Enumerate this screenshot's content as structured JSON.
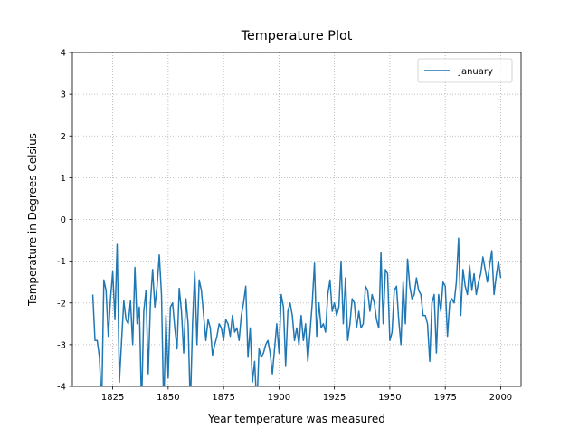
{
  "chart_data": {
    "type": "line",
    "title": "Temperature Plot",
    "x_label": "Year temperature was measured",
    "y_label": "Temperature in Degrees Celsius",
    "x": [
      1816,
      1817,
      1818,
      1819,
      1820,
      1821,
      1822,
      1823,
      1824,
      1825,
      1826,
      1827,
      1828,
      1829,
      1830,
      1831,
      1832,
      1833,
      1834,
      1835,
      1836,
      1837,
      1838,
      1839,
      1840,
      1841,
      1842,
      1843,
      1844,
      1845,
      1846,
      1847,
      1848,
      1849,
      1850,
      1851,
      1852,
      1853,
      1854,
      1855,
      1856,
      1857,
      1858,
      1859,
      1860,
      1861,
      1862,
      1863,
      1864,
      1865,
      1866,
      1867,
      1868,
      1869,
      1870,
      1871,
      1872,
      1873,
      1874,
      1875,
      1876,
      1877,
      1878,
      1879,
      1880,
      1881,
      1882,
      1883,
      1884,
      1885,
      1886,
      1887,
      1888,
      1889,
      1890,
      1891,
      1892,
      1893,
      1894,
      1895,
      1896,
      1897,
      1898,
      1899,
      1900,
      1901,
      1902,
      1903,
      1904,
      1905,
      1906,
      1907,
      1908,
      1909,
      1910,
      1911,
      1912,
      1913,
      1914,
      1915,
      1916,
      1917,
      1918,
      1919,
      1920,
      1921,
      1922,
      1923,
      1924,
      1925,
      1926,
      1927,
      1928,
      1929,
      1930,
      1931,
      1932,
      1933,
      1934,
      1935,
      1936,
      1937,
      1938,
      1939,
      1940,
      1941,
      1942,
      1943,
      1944,
      1945,
      1946,
      1947,
      1948,
      1949,
      1950,
      1951,
      1952,
      1953,
      1954,
      1955,
      1956,
      1957,
      1958,
      1959,
      1960,
      1961,
      1962,
      1963,
      1964,
      1965,
      1966,
      1967,
      1968,
      1969,
      1970,
      1971,
      1972,
      1973,
      1974,
      1975,
      1976,
      1977,
      1978,
      1979,
      1980,
      1981,
      1982,
      1983,
      1984,
      1985,
      1986,
      1987,
      1988,
      1989,
      1990,
      1991,
      1992,
      1993,
      1994,
      1995,
      1996,
      1997,
      1998,
      1999,
      2000
    ],
    "series": [
      {
        "name": "January",
        "color": "#1f77b4",
        "values": [
          -1.8,
          -2.9,
          -2.9,
          -3.3,
          -4.5,
          -1.45,
          -1.7,
          -2.8,
          -1.9,
          -1.25,
          -2.4,
          -0.6,
          -3.9,
          -2.9,
          -1.95,
          -2.4,
          -2.5,
          -1.95,
          -3.0,
          -1.15,
          -2.5,
          -2.1,
          -4.5,
          -2.2,
          -1.7,
          -3.7,
          -2.0,
          -1.2,
          -2.1,
          -1.6,
          -0.85,
          -1.8,
          -4.6,
          -2.3,
          -3.8,
          -2.1,
          -2.0,
          -2.6,
          -3.1,
          -1.65,
          -2.2,
          -3.2,
          -1.9,
          -2.5,
          -4.5,
          -2.5,
          -1.25,
          -3.0,
          -1.45,
          -1.7,
          -2.3,
          -2.9,
          -2.4,
          -2.6,
          -3.25,
          -3.0,
          -2.8,
          -2.5,
          -2.6,
          -2.9,
          -2.4,
          -2.5,
          -2.8,
          -2.3,
          -2.7,
          -2.6,
          -2.9,
          -2.3,
          -2.0,
          -1.6,
          -3.3,
          -2.6,
          -3.9,
          -3.4,
          -4.5,
          -3.1,
          -3.3,
          -3.2,
          -3.0,
          -2.9,
          -3.2,
          -3.7,
          -3.1,
          -2.5,
          -3.2,
          -1.8,
          -2.1,
          -3.5,
          -2.2,
          -2.0,
          -2.3,
          -2.9,
          -2.6,
          -3.0,
          -2.3,
          -2.9,
          -2.5,
          -3.4,
          -2.7,
          -2.0,
          -1.05,
          -2.8,
          -2.0,
          -2.6,
          -2.5,
          -2.7,
          -1.8,
          -1.45,
          -2.2,
          -2.0,
          -2.3,
          -2.1,
          -1.0,
          -2.5,
          -1.4,
          -2.9,
          -2.5,
          -1.9,
          -2.0,
          -2.6,
          -2.2,
          -2.6,
          -2.5,
          -1.6,
          -1.7,
          -2.2,
          -1.8,
          -2.0,
          -2.4,
          -2.6,
          -0.8,
          -2.5,
          -1.2,
          -1.3,
          -2.9,
          -2.7,
          -1.7,
          -1.6,
          -2.4,
          -3.0,
          -1.5,
          -2.5,
          -0.95,
          -1.6,
          -1.9,
          -1.8,
          -1.4,
          -1.7,
          -1.8,
          -2.3,
          -2.3,
          -2.5,
          -3.4,
          -2.0,
          -1.8,
          -3.2,
          -1.8,
          -2.2,
          -1.5,
          -1.6,
          -2.8,
          -2.0,
          -1.9,
          -2.0,
          -1.5,
          -0.45,
          -2.3,
          -1.2,
          -1.6,
          -1.8,
          -1.1,
          -1.7,
          -1.3,
          -1.8,
          -1.5,
          -1.3,
          -0.9,
          -1.2,
          -1.5,
          -1.1,
          -0.75,
          -1.8,
          -1.35,
          -1.0,
          -1.4
        ]
      }
    ],
    "xlim": [
      1806.8,
      2009.2
    ],
    "ylim": [
      -4,
      4
    ],
    "xticks": [
      1825,
      1850,
      1875,
      1900,
      1925,
      1950,
      1975,
      2000
    ],
    "yticks": [
      -4,
      -3,
      -2,
      -1,
      0,
      1,
      2,
      3,
      4
    ],
    "grid": true,
    "legend": "upper right"
  }
}
